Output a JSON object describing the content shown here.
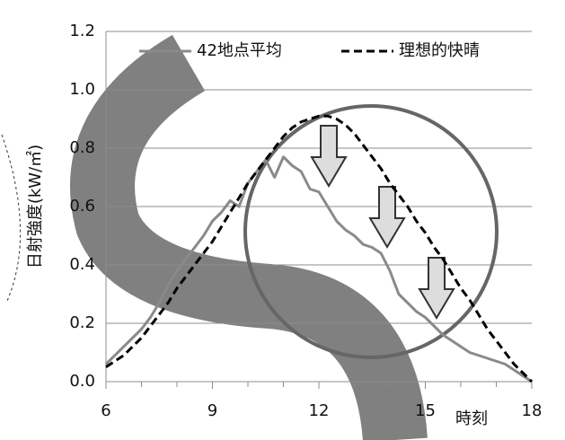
{
  "chart_data": {
    "type": "line",
    "x_label": "時刻",
    "y_label": "日射強度(kW/㎡)",
    "x": [
      6,
      6.25,
      6.5,
      6.75,
      7,
      7.25,
      7.5,
      7.75,
      8,
      8.25,
      8.5,
      8.75,
      9,
      9.25,
      9.5,
      9.75,
      10,
      10.25,
      10.5,
      10.75,
      11,
      11.25,
      11.5,
      11.75,
      12,
      12.25,
      12.5,
      12.75,
      13,
      13.25,
      13.5,
      13.75,
      14,
      14.25,
      14.5,
      14.75,
      15,
      15.25,
      15.5,
      15.75,
      16,
      16.25,
      16.5,
      16.75,
      17,
      17.25,
      17.5,
      17.75,
      18
    ],
    "series": [
      {
        "name": "42地点平均",
        "color": "#8a8a8a",
        "dashed": false,
        "values": [
          0.06,
          0.09,
          0.12,
          0.15,
          0.18,
          0.22,
          0.27,
          0.33,
          0.38,
          0.42,
          0.46,
          0.5,
          0.55,
          0.58,
          0.62,
          0.6,
          0.68,
          0.72,
          0.76,
          0.7,
          0.77,
          0.74,
          0.72,
          0.66,
          0.65,
          0.6,
          0.55,
          0.52,
          0.5,
          0.47,
          0.46,
          0.44,
          0.38,
          0.3,
          0.27,
          0.24,
          0.22,
          0.19,
          0.16,
          0.14,
          0.12,
          0.1,
          0.09,
          0.08,
          0.07,
          0.06,
          0.04,
          0.02,
          0.0
        ]
      },
      {
        "name": "理想的快晴",
        "color": "#000000",
        "dashed": true,
        "values": [
          0.05,
          0.07,
          0.09,
          0.12,
          0.15,
          0.19,
          0.23,
          0.27,
          0.32,
          0.36,
          0.4,
          0.44,
          0.48,
          0.53,
          0.58,
          0.63,
          0.68,
          0.72,
          0.76,
          0.8,
          0.84,
          0.87,
          0.89,
          0.9,
          0.91,
          0.91,
          0.9,
          0.88,
          0.85,
          0.81,
          0.77,
          0.73,
          0.68,
          0.64,
          0.6,
          0.55,
          0.51,
          0.46,
          0.42,
          0.37,
          0.32,
          0.28,
          0.23,
          0.18,
          0.14,
          0.1,
          0.06,
          0.03,
          0.0
        ]
      }
    ],
    "xlim": [
      6,
      18
    ],
    "xticks": [
      6,
      9,
      12,
      15,
      18
    ],
    "ylim": [
      0,
      1.2
    ],
    "yticks": [
      {
        "value": 0,
        "label": "0.0"
      },
      {
        "value": 0.2,
        "label": "0.2"
      },
      {
        "value": 0.4,
        "label": "0.4"
      },
      {
        "value": 0.6,
        "label": "0.6"
      },
      {
        "value": 0.8,
        "label": "0.8"
      },
      {
        "value": 1.0,
        "label": "1.0"
      },
      {
        "value": 1.2,
        "label": "1.2"
      }
    ],
    "grid": true
  }
}
